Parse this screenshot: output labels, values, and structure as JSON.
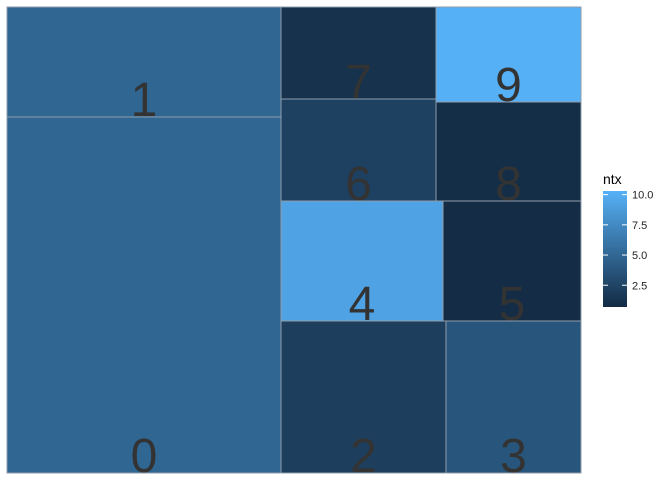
{
  "chart_data": {
    "type": "treemap",
    "fill_variable": "ntx",
    "tiles": [
      {
        "label": "0",
        "value": 4.9
      },
      {
        "label": "1",
        "value": 4.9
      },
      {
        "label": "2",
        "value": 2.1
      },
      {
        "label": "3",
        "value": 3.7
      },
      {
        "label": "4",
        "value": 9.3
      },
      {
        "label": "5",
        "value": 0.8
      },
      {
        "label": "6",
        "value": 2.3
      },
      {
        "label": "7",
        "value": 1.2
      },
      {
        "label": "8",
        "value": 0.9
      },
      {
        "label": "9",
        "value": 10.2
      }
    ],
    "legend": {
      "title": "ntx",
      "ticks": [
        2.5,
        5.0,
        7.5,
        10.0
      ],
      "tick_labels": [
        "2.5",
        "5.0",
        "7.5",
        "10.0"
      ],
      "range": [
        0.7,
        10.3
      ],
      "color_low": "#132B43",
      "color_high": "#56B1F7",
      "placement": "right"
    }
  }
}
